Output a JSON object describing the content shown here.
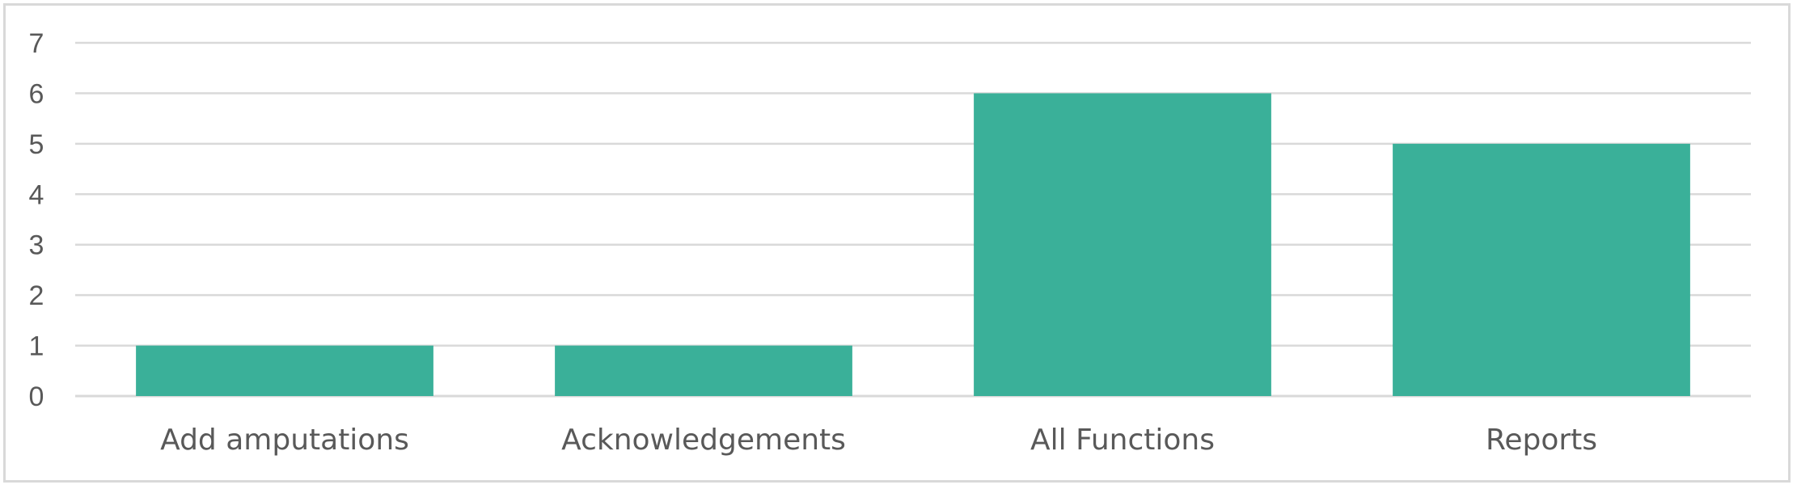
{
  "chart_data": {
    "type": "bar",
    "categories": [
      "Add amputations",
      "Acknowledgements",
      "All Functions",
      "Reports"
    ],
    "values": [
      1,
      1,
      6,
      5
    ],
    "ylim": [
      0,
      7
    ],
    "yticks": [
      0,
      1,
      2,
      3,
      4,
      5,
      6,
      7
    ],
    "grid": true,
    "legend": "none",
    "title": "",
    "xlabel": "",
    "ylabel": ""
  },
  "colors": {
    "bar": "#3ab099",
    "grid": "#d9d9d9",
    "text": "#595959"
  }
}
